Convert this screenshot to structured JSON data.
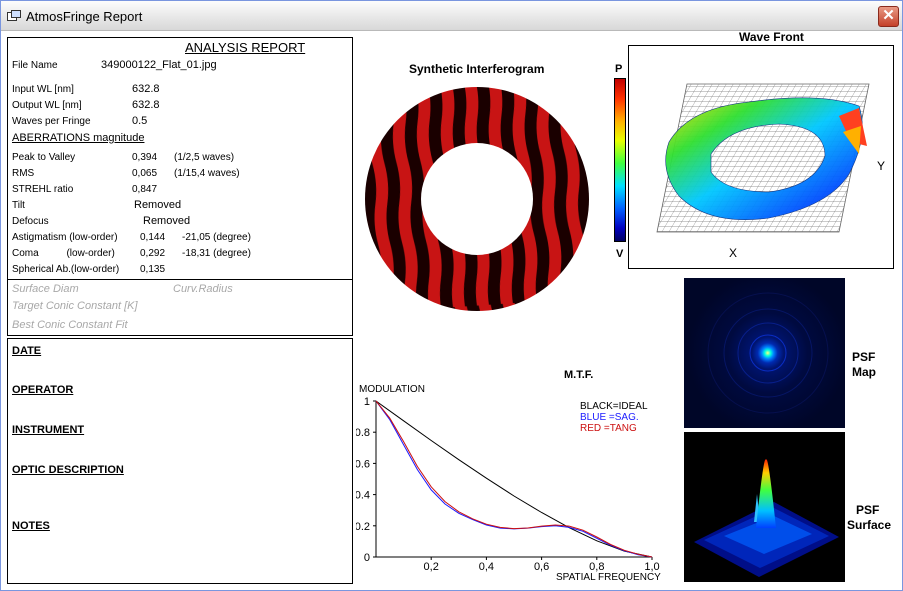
{
  "window": {
    "title": "AtmosFringe  Report",
    "close_label": "✕"
  },
  "report": {
    "heading": "ANALYSIS  REPORT",
    "file_name_label": "File Name",
    "file_name": "349000122_Flat_01.jpg",
    "input_wl_label": "Input  WL [nm]",
    "input_wl": "632.8",
    "output_wl_label": "Output WL [nm]",
    "output_wl": "632.8",
    "waves_label": "Waves per Fringe",
    "waves": "0.5",
    "aberrations_heading": "ABERRATIONS magnitude",
    "ptv_label": "Peak to Valley",
    "ptv": "0,394",
    "ptv_waves": "(1/2,5 waves)",
    "rms_label": "RMS",
    "rms": "0,065",
    "rms_waves": "(1/15,4 waves)",
    "strehl_label": "STREHL ratio",
    "strehl": "0,847",
    "tilt_label": "Tilt",
    "tilt": "Removed",
    "defocus_label": "Defocus",
    "defocus": "Removed",
    "astig_label": "Astigmatism  (low-order)",
    "astig": "0,144",
    "astig_deg": "-21,05  (degree)",
    "coma_label": "Coma          (low-order)",
    "coma": "0,292",
    "coma_deg": "-18,31  (degree)",
    "spherical_label": "Spherical Ab.(low-order)",
    "spherical": "0,135",
    "surface_diam": "Surface Diam",
    "curv_radius": "Curv.Radius",
    "target_conic": "Target Conic Constant [K]",
    "best_conic": "Best Conic Constant Fit"
  },
  "info": {
    "date": "DATE",
    "operator": "OPERATOR",
    "instrument": "INSTRUMENT",
    "optic": "OPTIC DESCRIPTION",
    "notes": "NOTES"
  },
  "interferogram": {
    "title": "Synthetic Interferogram"
  },
  "colorbar": {
    "top": "P",
    "bottom": "V"
  },
  "wavefront": {
    "title": "Wave Front",
    "x_label": "X",
    "y_label": "Y"
  },
  "psf": {
    "map_label_1": "PSF",
    "map_label_2": "Map",
    "surface_label_1": "PSF",
    "surface_label_2": "Surface"
  },
  "colors": {
    "fringe_red": "#c81414",
    "fringe_dark": "#1a0000",
    "ideal": "#000000",
    "sag": "#1a1aff",
    "tang": "#cc1010"
  },
  "chart_data": {
    "type": "line",
    "title": "M.T.F.",
    "ylabel": "MODULATION",
    "xlabel": "SPATIAL FREQUENCY",
    "xlim": [
      0,
      1
    ],
    "ylim": [
      0,
      1
    ],
    "x_ticks": [
      "0,2",
      "0,4",
      "0,6",
      "0,8",
      "1,0"
    ],
    "y_ticks": [
      "0",
      "0.2",
      "0.4",
      "0.6",
      "0.8",
      "1"
    ],
    "legend": [
      "BLACK=IDEAL",
      "BLUE  =SAG.",
      "RED   =TANG"
    ],
    "legend_position": "top-right",
    "series": [
      {
        "name": "IDEAL",
        "color": "#000000",
        "x": [
          0,
          0.1,
          0.2,
          0.3,
          0.4,
          0.5,
          0.6,
          0.7,
          0.8,
          0.9,
          1.0
        ],
        "y": [
          1.0,
          0.873,
          0.747,
          0.624,
          0.505,
          0.391,
          0.285,
          0.188,
          0.104,
          0.037,
          0.0
        ]
      },
      {
        "name": "SAG.",
        "color": "#1a1aff",
        "x": [
          0,
          0.05,
          0.1,
          0.15,
          0.2,
          0.25,
          0.3,
          0.35,
          0.4,
          0.45,
          0.5,
          0.55,
          0.6,
          0.65,
          0.7,
          0.75,
          0.8,
          0.85,
          0.9,
          0.95,
          1.0
        ],
        "y": [
          1.0,
          0.88,
          0.72,
          0.56,
          0.43,
          0.34,
          0.28,
          0.24,
          0.205,
          0.185,
          0.18,
          0.185,
          0.195,
          0.2,
          0.19,
          0.165,
          0.12,
          0.075,
          0.04,
          0.015,
          0.0
        ]
      },
      {
        "name": "TANG",
        "color": "#cc1010",
        "x": [
          0,
          0.05,
          0.1,
          0.15,
          0.2,
          0.25,
          0.3,
          0.35,
          0.4,
          0.45,
          0.5,
          0.55,
          0.6,
          0.65,
          0.7,
          0.75,
          0.8,
          0.85,
          0.9,
          0.95,
          1.0
        ],
        "y": [
          1.0,
          0.89,
          0.74,
          0.58,
          0.45,
          0.355,
          0.29,
          0.245,
          0.21,
          0.19,
          0.182,
          0.186,
          0.198,
          0.205,
          0.198,
          0.172,
          0.128,
          0.08,
          0.043,
          0.017,
          0.0
        ]
      }
    ]
  }
}
